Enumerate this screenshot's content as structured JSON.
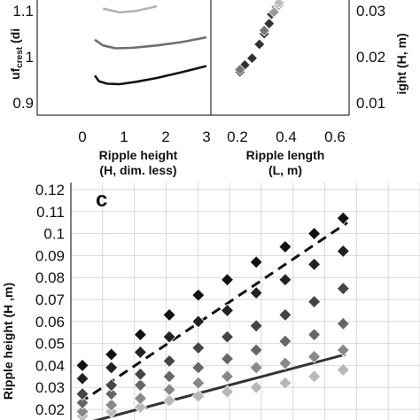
{
  "chart_data": [
    {
      "panel": "a",
      "type": "line",
      "ylabel": "uf crest (dim. less)",
      "ylabel_main": "uf",
      "ylabel_sub": "crest",
      "ylabel_tail": " (di",
      "xlabel_line1": "Ripple height",
      "xlabel_line2": "(H, dim. less)",
      "xlim": [
        0,
        3
      ],
      "ylim": [
        0.9,
        1.1
      ],
      "xticks": [
        "0",
        "1",
        "2",
        "3"
      ],
      "yticks": [
        "0.9",
        "1",
        "1.1"
      ],
      "series": [
        {
          "color": "#b3b3b3",
          "x": [
            0.5,
            0.9,
            1.3,
            1.8
          ],
          "y": [
            1.095,
            1.087,
            1.09,
            1.1
          ]
        },
        {
          "color": "#6e6e6e",
          "x": [
            0.3,
            0.5,
            0.8,
            1.2,
            1.8,
            2.4,
            3.0
          ],
          "y": [
            1.03,
            1.018,
            1.012,
            1.013,
            1.018,
            1.025,
            1.035
          ]
        },
        {
          "color": "#111111",
          "x": [
            0.3,
            0.4,
            0.6,
            0.9,
            1.3,
            1.8,
            2.4,
            3.0
          ],
          "y": [
            0.955,
            0.943,
            0.938,
            0.937,
            0.942,
            0.95,
            0.962,
            0.975
          ]
        }
      ]
    },
    {
      "panel": "b",
      "type": "scatter",
      "ylabel": "Ripple height (H, m)",
      "ylabel_visible": "ight (H, m)",
      "xlabel_line1": "Ripple length",
      "xlabel_line2": "(L, m)",
      "xlim": [
        0.2,
        0.6
      ],
      "ylim": [
        0.01,
        0.03
      ],
      "xticks": [
        "0.2",
        "0.4",
        "0.6"
      ],
      "extra_tick_left": "3",
      "yticks": [
        "0.01",
        "0.02",
        "0.03"
      ],
      "points": [
        {
          "x": 0.21,
          "y": 0.0165,
          "color": "#333333"
        },
        {
          "x": 0.23,
          "y": 0.018,
          "color": "#333333"
        },
        {
          "x": 0.26,
          "y": 0.0195,
          "color": "#333333"
        },
        {
          "x": 0.29,
          "y": 0.0225,
          "color": "#333333"
        },
        {
          "x": 0.31,
          "y": 0.0248,
          "color": "#333333"
        },
        {
          "x": 0.33,
          "y": 0.027,
          "color": "#333333"
        },
        {
          "x": 0.34,
          "y": 0.029,
          "color": "#444444"
        },
        {
          "x": 0.36,
          "y": 0.0305,
          "color": "#555555"
        },
        {
          "x": 0.21,
          "y": 0.017,
          "color": "#777777"
        },
        {
          "x": 0.31,
          "y": 0.0255,
          "color": "#777777"
        },
        {
          "x": 0.35,
          "y": 0.0295,
          "color": "#999999"
        },
        {
          "x": 0.37,
          "y": 0.031,
          "color": "#999999"
        },
        {
          "x": 0.37,
          "y": 0.0315,
          "color": "#bbbbbb"
        }
      ]
    },
    {
      "panel": "c",
      "type": "scatter",
      "label": "c",
      "ylabel": "Ripple height (H ,m)",
      "ylim": [
        0.015,
        0.12
      ],
      "yticks": [
        "0.12",
        "0.11",
        "0.1",
        "0.09",
        "0.08",
        "0.07",
        "0.06",
        "0.05",
        "0.04",
        "0.03",
        "0.02"
      ],
      "x_categories": 11,
      "series": [
        {
          "color": "#111111",
          "values": [
            0.04,
            0.045,
            0.054,
            0.063,
            0.072,
            0.079,
            0.087,
            0.094,
            0.1,
            0.107
          ]
        },
        {
          "color": "#222222",
          "values": [
            0.034,
            0.039,
            0.046,
            0.053,
            0.06,
            0.065,
            0.073,
            0.079,
            0.086,
            0.092
          ]
        },
        {
          "color": "#444444",
          "values": [
            0.027,
            0.031,
            0.036,
            0.042,
            0.048,
            0.053,
            0.058,
            0.063,
            0.069,
            0.075
          ]
        },
        {
          "color": "#666666",
          "values": [
            0.023,
            0.027,
            0.031,
            0.035,
            0.039,
            0.043,
            0.047,
            0.051,
            0.054,
            0.059
          ]
        },
        {
          "color": "#888888",
          "values": [
            0.019,
            0.022,
            0.025,
            0.029,
            0.032,
            0.035,
            0.039,
            0.041,
            0.044,
            0.047
          ]
        },
        {
          "color": "#b8b8b8",
          "values": [
            0.017,
            0.019,
            0.021,
            0.024,
            0.026,
            0.028,
            0.03,
            0.032,
            0.035,
            0.038
          ]
        }
      ],
      "trend_dashed": {
        "color": "#111111",
        "y_start": 0.023,
        "y_end": 0.105
      },
      "trend_solid": {
        "color": "#333333",
        "y_start": 0.013,
        "y_end": 0.045
      }
    }
  ]
}
